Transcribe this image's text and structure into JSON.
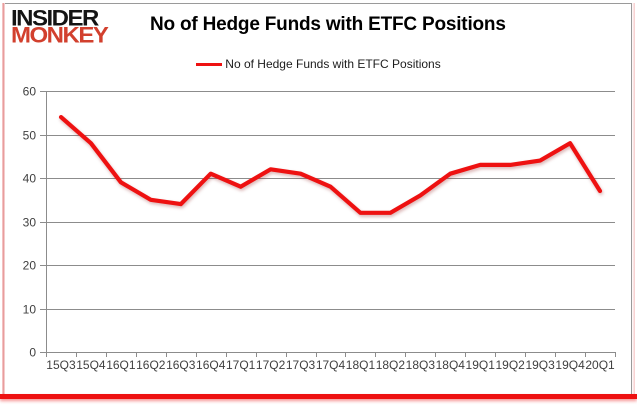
{
  "branding": {
    "logo_line1": "INSIDER",
    "logo_line2": "MONKEY"
  },
  "header": {
    "title": "No of Hedge Funds with ETFC Positions"
  },
  "legend": {
    "label": "No of Hedge Funds with ETFC Positions"
  },
  "colors": {
    "line": "#ee1111",
    "grid": "#8c8c8c",
    "tick_text": "#3f3f3f",
    "logo_red": "#d2402e",
    "border_red": "#ee1111"
  },
  "chart_data": {
    "type": "line",
    "title": "No of Hedge Funds with ETFC Positions",
    "categories": [
      "15Q3",
      "15Q4",
      "16Q1",
      "16Q2",
      "16Q3",
      "16Q4",
      "17Q1",
      "17Q2",
      "17Q3",
      "17Q4",
      "18Q1",
      "18Q2",
      "18Q3",
      "18Q4",
      "19Q1",
      "19Q2",
      "19Q3",
      "19Q4",
      "20Q1"
    ],
    "series": [
      {
        "name": "No of Hedge Funds with ETFC Positions",
        "values": [
          54,
          48,
          39,
          35,
          34,
          41,
          38,
          42,
          41,
          38,
          32,
          32,
          36,
          41,
          43,
          43,
          44,
          48,
          37
        ]
      }
    ],
    "xlabel": "",
    "ylabel": "",
    "ylim": [
      0,
      60
    ],
    "ytick_step": 10,
    "grid": true,
    "legend_position": "top"
  }
}
